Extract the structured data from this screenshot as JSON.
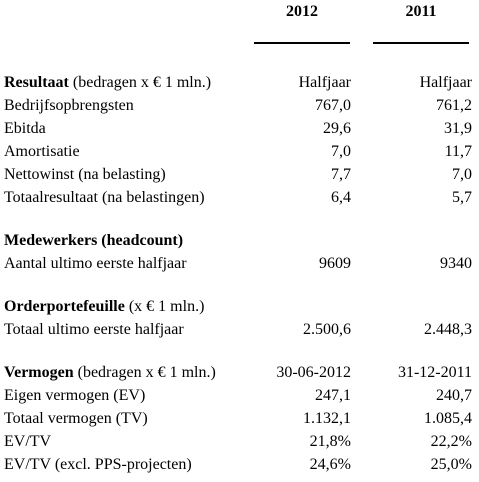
{
  "header": {
    "year1": "2012",
    "year2": "2011"
  },
  "sections": [
    {
      "title": "Resultaat",
      "subtitle": " (bedragen x € 1 mln.)",
      "col1": "Halfjaar",
      "col2": "Halfjaar",
      "rows": [
        {
          "label": "Bedrijfsopbrengsten",
          "v1": "767,0",
          "v2": "761,2"
        },
        {
          "label": "Ebitda",
          "v1": "29,6",
          "v2": "31,9"
        },
        {
          "label": "Amortisatie",
          "v1": "7,0",
          "v2": "11,7"
        },
        {
          "label": "Nettowinst (na belasting)",
          "v1": "7,7",
          "v2": "7,0"
        },
        {
          "label": "Totaalresultaat (na belastingen)",
          "v1": "6,4",
          "v2": "5,7"
        }
      ]
    },
    {
      "title": "Medewerkers (headcount)",
      "subtitle": "",
      "col1": "",
      "col2": "",
      "rows": [
        {
          "label": "Aantal ultimo eerste halfjaar",
          "v1": "9609",
          "v2": "9340"
        }
      ]
    },
    {
      "title": "Orderportefeuille",
      "subtitle": " (x € 1 mln.)",
      "col1": "",
      "col2": "",
      "rows": [
        {
          "label": "Totaal ultimo eerste halfjaar",
          "v1": "2.500,6",
          "v2": "2.448,3"
        }
      ]
    },
    {
      "title": "Vermogen",
      "subtitle": " (bedragen x € 1 mln.)",
      "col1": "30-06-2012",
      "col2": "31-12-2011",
      "rows": [
        {
          "label": "Eigen vermogen (EV)",
          "v1": "247,1",
          "v2": "240,7"
        },
        {
          "label": "Totaal vermogen (TV)",
          "v1": "1.132,1",
          "v2": "1.085,4"
        },
        {
          "label": "EV/TV",
          "v1": "21,8%",
          "v2": "22,2%"
        },
        {
          "label": "EV/TV (excl. PPS-projecten)",
          "v1": "24,6%",
          "v2": "25,0%"
        }
      ]
    }
  ]
}
